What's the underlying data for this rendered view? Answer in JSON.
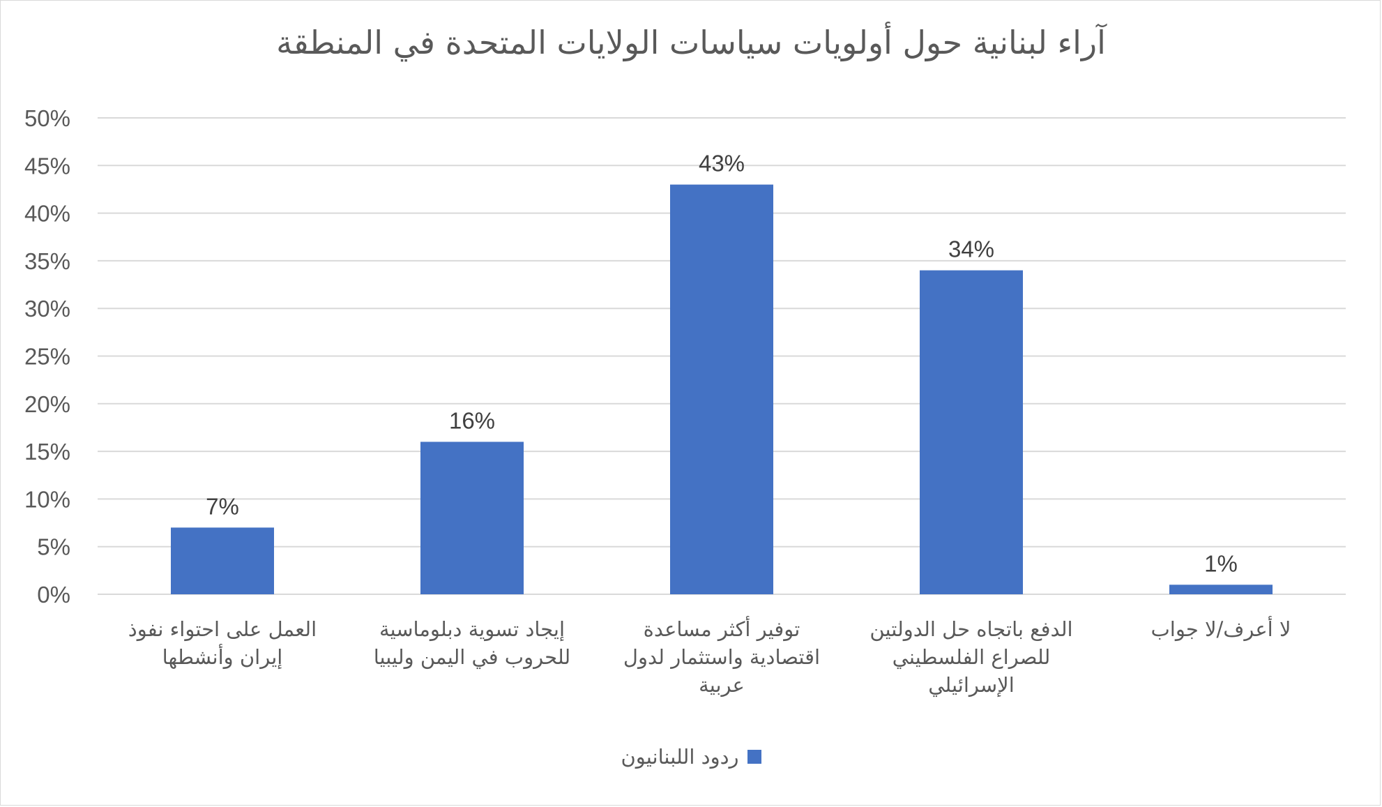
{
  "chart_data": {
    "type": "bar",
    "title": "آراء لبنانية حول أولويات سياسات الولايات المتحدة في المنطقة",
    "categories": [
      [
        "العمل على احتواء نفوذ",
        "إيران وأنشطها"
      ],
      [
        "إيجاد تسوية دبلوماسية",
        "للحروب في اليمن وليبيا"
      ],
      [
        "توفير أكثر مساعدة",
        "اقتصادية واستثمار لدول",
        "عربية"
      ],
      [
        "الدفع باتجاه حل الدولتين",
        "للصراع الفلسطيني",
        "الإسرائيلي"
      ],
      [
        "لا أعرف/لا جواب"
      ]
    ],
    "series": [
      {
        "name": "ردود اللبنانيون",
        "values": [
          7,
          16,
          43,
          34,
          1
        ],
        "color": "#4472c4"
      }
    ],
    "data_labels": [
      "7%",
      "16%",
      "43%",
      "34%",
      "1%"
    ],
    "y_ticks": [
      "0%",
      "5%",
      "10%",
      "15%",
      "20%",
      "25%",
      "30%",
      "35%",
      "40%",
      "45%",
      "50%"
    ],
    "ylim": [
      0,
      50
    ],
    "grid": true,
    "legend_position": "bottom",
    "colors": {
      "grid": "#d9d9d9",
      "text": "#595959",
      "bar": "#4472c4"
    }
  }
}
